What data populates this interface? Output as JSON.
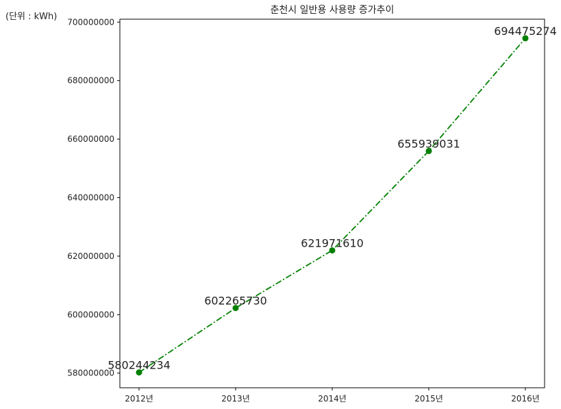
{
  "chart_data": {
    "type": "line",
    "title": "춘천시 일반용 사용량 증가추이",
    "unit_label": "(단위 : kWh)",
    "xlabel": "",
    "ylabel": "",
    "categories": [
      "2012년",
      "2013년",
      "2014년",
      "2015년",
      "2016년"
    ],
    "values": [
      580244234,
      602265730,
      621971610,
      655939031,
      694475274
    ],
    "data_labels": [
      "580244234",
      "602265730",
      "621971610",
      "655939031",
      "694475274"
    ],
    "y_ticks": [
      580000000,
      600000000,
      620000000,
      640000000,
      660000000,
      680000000,
      700000000
    ],
    "y_tick_labels": [
      "580000000",
      "600000000",
      "620000000",
      "640000000",
      "660000000",
      "680000000",
      "700000000"
    ],
    "ylim": [
      575000000,
      701000000
    ],
    "grid": false,
    "line_color": "#008000",
    "line_style": "dash-dot",
    "marker": "circle"
  }
}
